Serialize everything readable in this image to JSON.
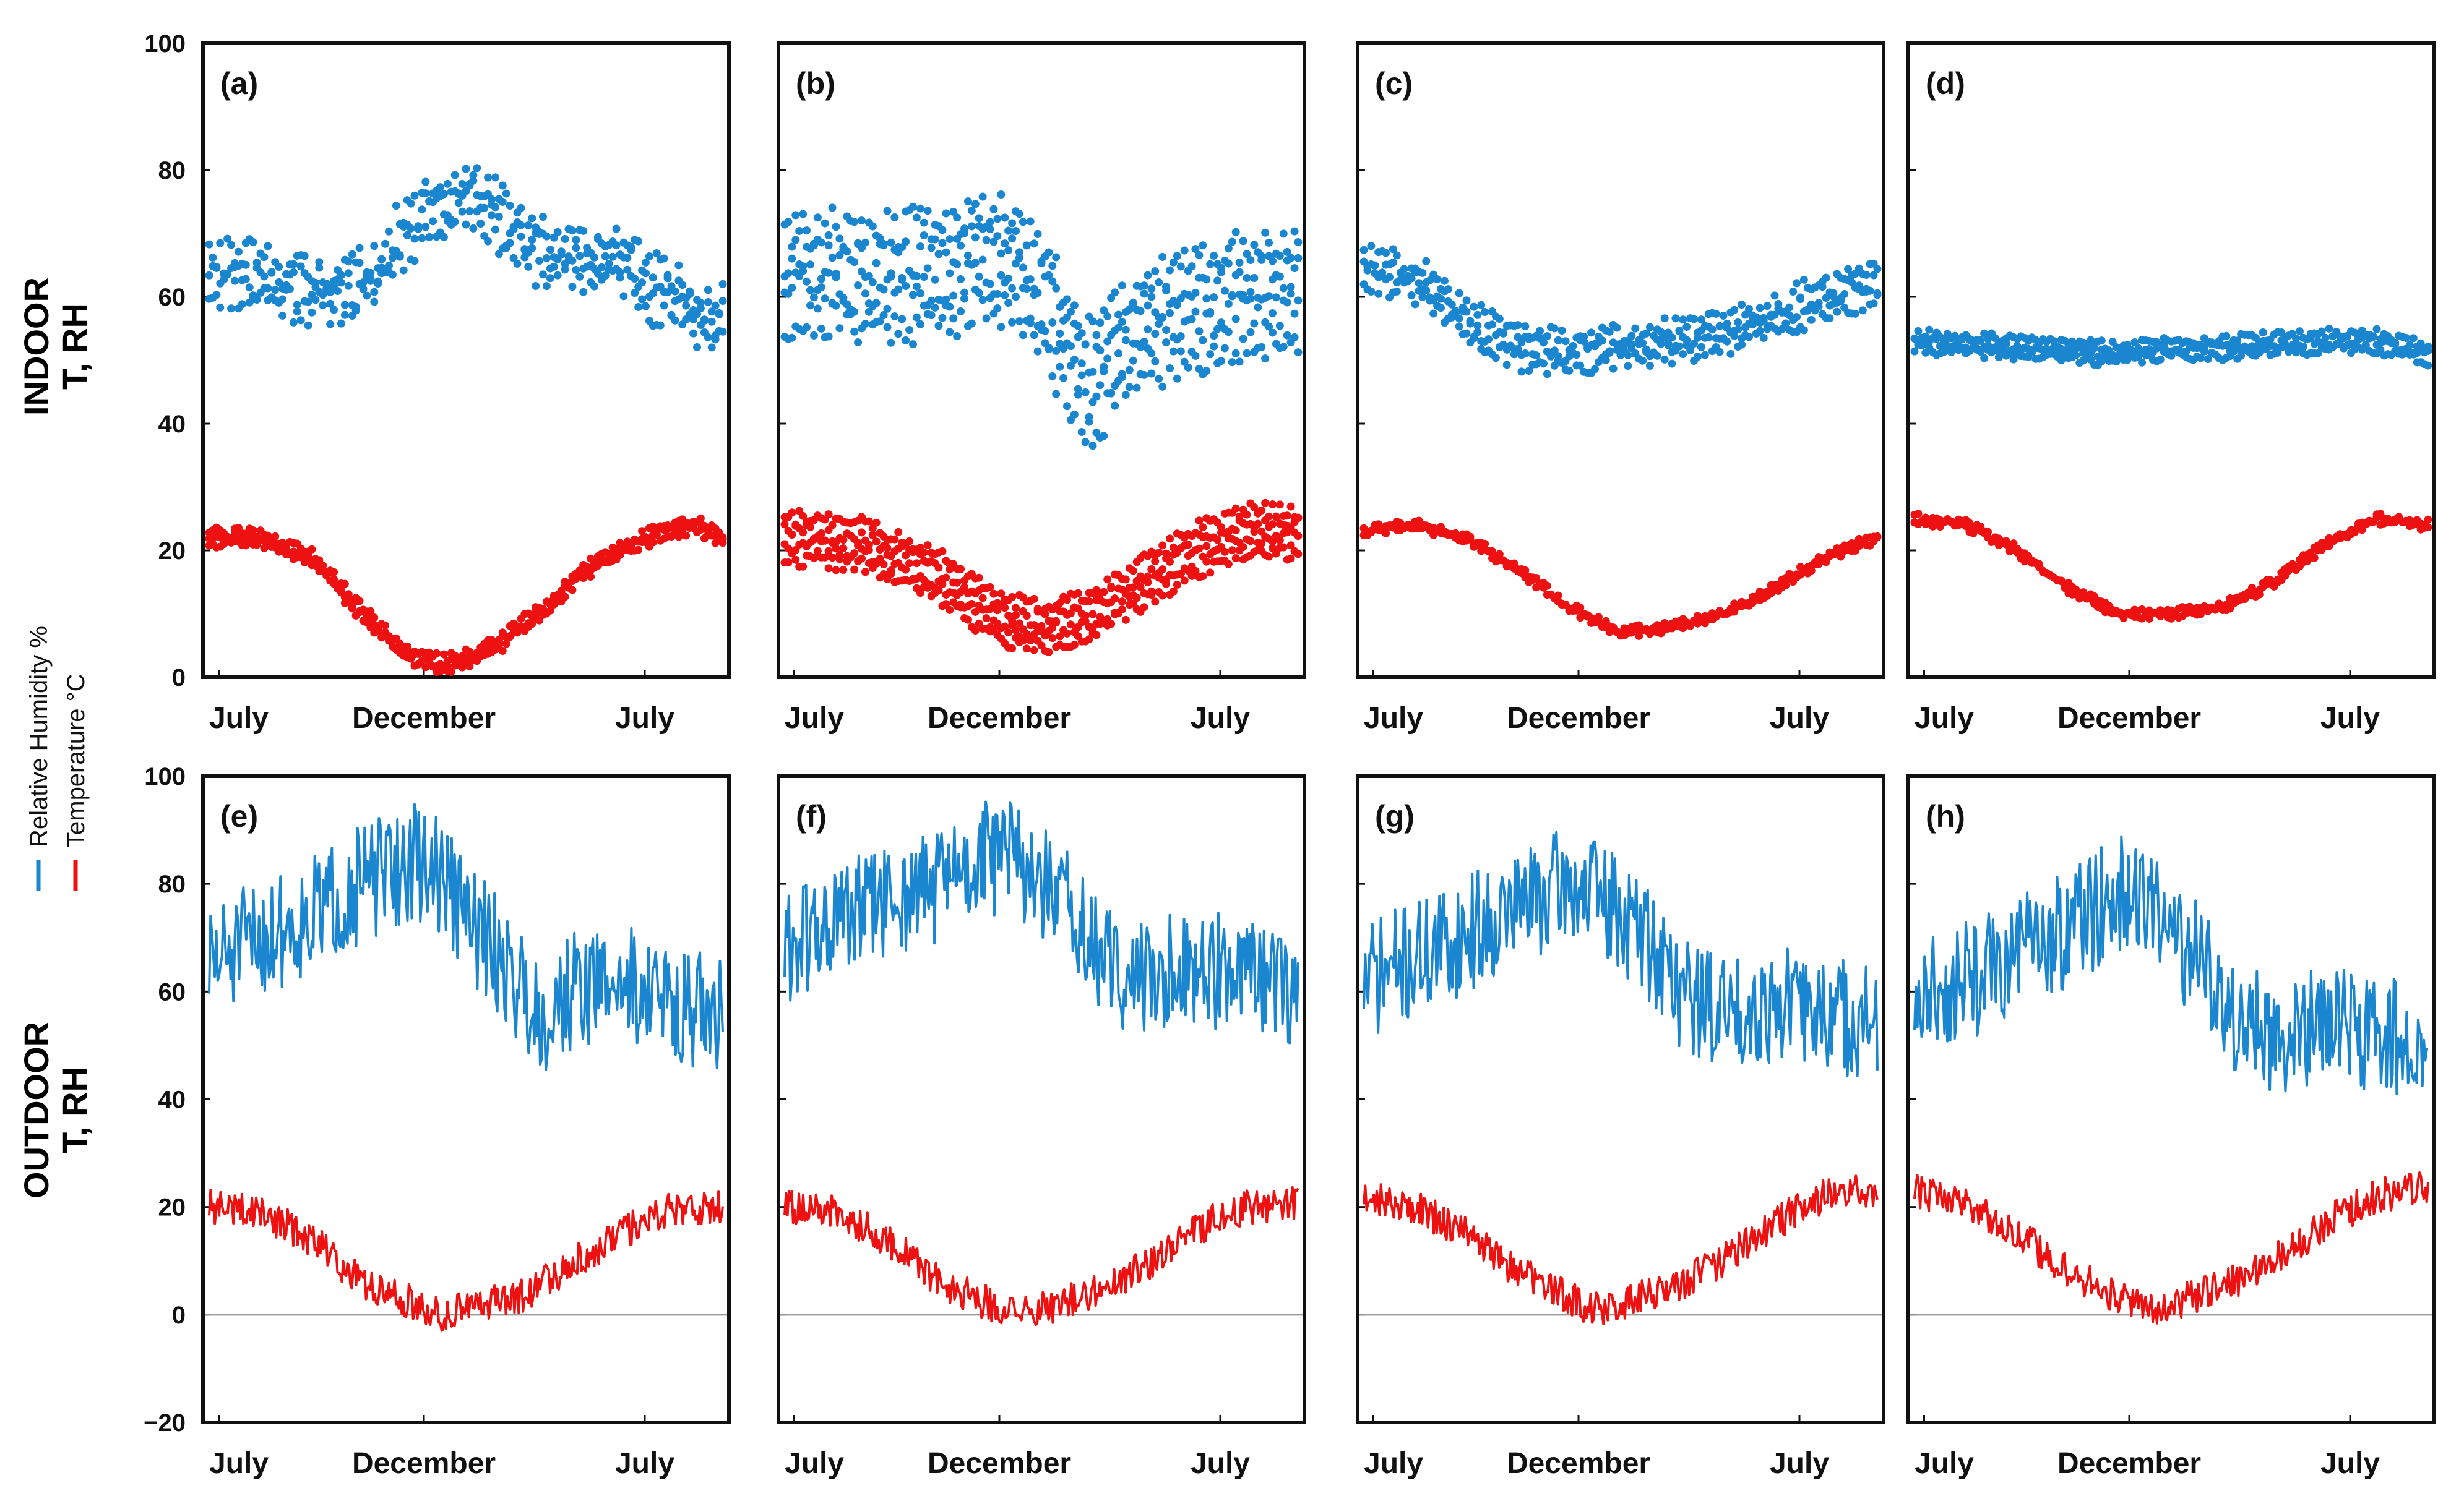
{
  "figure": {
    "row_labels": {
      "indoor": {
        "line1": "INDOOR",
        "line2": "T, RH"
      },
      "outdoor": {
        "line1": "OUTDOOR",
        "line2": "T, RH"
      }
    },
    "legend": {
      "items": [
        {
          "label": "Relative Humidity %",
          "color": "#1a86cf"
        },
        {
          "label": "Temperature °C",
          "color": "#ee1111"
        }
      ]
    },
    "colors": {
      "rh": "#1a86cf",
      "temp": "#ee1111",
      "zero_line": "#9a9a9a",
      "frame": "#111111"
    }
  },
  "chart_data": [
    {
      "id": "a",
      "panel_label": "(a)",
      "type": "scatter",
      "setting": "indoor",
      "ylim": [
        0,
        100
      ],
      "yticks": [
        "100",
        "80",
        "60",
        "40",
        "20",
        "0"
      ],
      "xticks": [
        "July",
        "December",
        "July"
      ],
      "series": [
        {
          "name": "Relative Humidity %",
          "knots": [
            [
              0,
              64
            ],
            [
              0.1,
              63
            ],
            [
              0.2,
              61
            ],
            [
              0.3,
              62
            ],
            [
              0.38,
              70
            ],
            [
              0.45,
              75
            ],
            [
              0.5,
              76
            ],
            [
              0.55,
              74
            ],
            [
              0.6,
              69
            ],
            [
              0.67,
              66
            ],
            [
              0.72,
              66
            ],
            [
              0.8,
              66
            ],
            [
              0.85,
              62
            ],
            [
              0.9,
              60
            ],
            [
              0.95,
              57
            ],
            [
              1,
              57
            ]
          ],
          "noise": 3.5,
          "strands": 3,
          "spread": 2.5,
          "seed": 11
        },
        {
          "name": "Temperature °C",
          "knots": [
            [
              0,
              22
            ],
            [
              0.1,
              22
            ],
            [
              0.2,
              19
            ],
            [
              0.3,
              10
            ],
            [
              0.38,
              4
            ],
            [
              0.45,
              2
            ],
            [
              0.5,
              3
            ],
            [
              0.56,
              5
            ],
            [
              0.64,
              10
            ],
            [
              0.72,
              16
            ],
            [
              0.8,
              20
            ],
            [
              0.88,
              23
            ],
            [
              0.95,
              24
            ],
            [
              1,
              22
            ]
          ],
          "noise": 0.8,
          "strands": 3,
          "spread": 0.8,
          "seed": 12
        }
      ]
    },
    {
      "id": "b",
      "panel_label": "(b)",
      "type": "scatter",
      "setting": "indoor",
      "ylim": [
        0,
        100
      ],
      "yticks": [],
      "xticks": [
        "July",
        "December",
        "July"
      ],
      "series": [
        {
          "name": "Relative Humidity %",
          "knots": [
            [
              0,
              63
            ],
            [
              0.1,
              64
            ],
            [
              0.2,
              63
            ],
            [
              0.3,
              64
            ],
            [
              0.4,
              66
            ],
            [
              0.45,
              66
            ],
            [
              0.5,
              60
            ],
            [
              0.55,
              52
            ],
            [
              0.6,
              46
            ],
            [
              0.65,
              52
            ],
            [
              0.7,
              56
            ],
            [
              0.8,
              58
            ],
            [
              0.9,
              60
            ],
            [
              1,
              62
            ]
          ],
          "noise": 3.5,
          "strands": 4,
          "spread": 5,
          "seed": 21
        },
        {
          "name": "Temperature °C",
          "knots": [
            [
              0,
              22
            ],
            [
              0.15,
              21
            ],
            [
              0.3,
              16
            ],
            [
              0.42,
              9
            ],
            [
              0.5,
              8
            ],
            [
              0.6,
              10
            ],
            [
              0.7,
              15
            ],
            [
              0.8,
              20
            ],
            [
              0.9,
              23
            ],
            [
              1,
              23
            ]
          ],
          "noise": 1.2,
          "strands": 4,
          "spread": 2.2,
          "seed": 22
        }
      ]
    },
    {
      "id": "c",
      "panel_label": "(c)",
      "type": "scatter",
      "setting": "indoor",
      "ylim": [
        0,
        100
      ],
      "yticks": [],
      "xticks": [
        "July",
        "December",
        "July"
      ],
      "series": [
        {
          "name": "Relative Humidity %",
          "knots": [
            [
              0,
              65
            ],
            [
              0.12,
              62
            ],
            [
              0.2,
              56
            ],
            [
              0.3,
              52
            ],
            [
              0.4,
              51
            ],
            [
              0.5,
              52
            ],
            [
              0.6,
              53
            ],
            [
              0.7,
              54
            ],
            [
              0.8,
              57
            ],
            [
              0.9,
              60
            ],
            [
              1,
              62
            ]
          ],
          "noise": 2,
          "strands": 3,
          "spread": 2,
          "seed": 31
        },
        {
          "name": "Temperature °C",
          "knots": [
            [
              0,
              23
            ],
            [
              0.1,
              24
            ],
            [
              0.2,
              22
            ],
            [
              0.3,
              17
            ],
            [
              0.4,
              11
            ],
            [
              0.5,
              7
            ],
            [
              0.6,
              8
            ],
            [
              0.7,
              10
            ],
            [
              0.8,
              14
            ],
            [
              0.9,
              19
            ],
            [
              1,
              22
            ]
          ],
          "noise": 0.6,
          "strands": 2,
          "spread": 0.6,
          "seed": 32
        }
      ]
    },
    {
      "id": "d",
      "panel_label": "(d)",
      "type": "scatter",
      "setting": "indoor",
      "ylim": [
        0,
        100
      ],
      "yticks": [],
      "xticks": [
        "July",
        "December",
        "July"
      ],
      "series": [
        {
          "name": "Relative Humidity %",
          "knots": [
            [
              0,
              53
            ],
            [
              0.2,
              52
            ],
            [
              0.4,
              51
            ],
            [
              0.5,
              52
            ],
            [
              0.6,
              52
            ],
            [
              0.8,
              53
            ],
            [
              0.9,
              53
            ],
            [
              1,
              51
            ]
          ],
          "noise": 0.8,
          "strands": 3,
          "spread": 1.2,
          "seed": 41
        },
        {
          "name": "Temperature °C",
          "knots": [
            [
              0,
              25
            ],
            [
              0.1,
              24
            ],
            [
              0.2,
              20
            ],
            [
              0.3,
              14
            ],
            [
              0.4,
              10
            ],
            [
              0.5,
              10
            ],
            [
              0.6,
              11
            ],
            [
              0.7,
              15
            ],
            [
              0.8,
              21
            ],
            [
              0.9,
              25
            ],
            [
              1,
              24
            ]
          ],
          "noise": 0.6,
          "strands": 2,
          "spread": 0.6,
          "seed": 42
        }
      ]
    },
    {
      "id": "e",
      "panel_label": "(e)",
      "type": "line",
      "setting": "outdoor",
      "ylim": [
        -20,
        100
      ],
      "yticks": [
        "100",
        "80",
        "60",
        "40",
        "20",
        "0",
        "−20"
      ],
      "xticks": [
        "July",
        "December",
        "July"
      ],
      "zero_line": true,
      "series": [
        {
          "name": "Relative Humidity %",
          "knots": [
            [
              0,
              65
            ],
            [
              0.1,
              70
            ],
            [
              0.2,
              74
            ],
            [
              0.3,
              80
            ],
            [
              0.4,
              84
            ],
            [
              0.45,
              82
            ],
            [
              0.5,
              74
            ],
            [
              0.6,
              62
            ],
            [
              0.65,
              55
            ],
            [
              0.7,
              60
            ],
            [
              0.8,
              62
            ],
            [
              0.9,
              58
            ],
            [
              1,
              55
            ]
          ],
          "noise": 11,
          "points": 360,
          "seed": 51
        },
        {
          "name": "Temperature °C",
          "knots": [
            [
              0,
              20
            ],
            [
              0.1,
              19
            ],
            [
              0.2,
              14
            ],
            [
              0.3,
              6
            ],
            [
              0.4,
              2
            ],
            [
              0.45,
              0
            ],
            [
              0.5,
              2
            ],
            [
              0.6,
              3
            ],
            [
              0.7,
              9
            ],
            [
              0.8,
              15
            ],
            [
              0.9,
              20
            ],
            [
              1,
              20
            ]
          ],
          "noise": 3.2,
          "points": 360,
          "seed": 52
        }
      ]
    },
    {
      "id": "f",
      "panel_label": "(f)",
      "type": "line",
      "setting": "outdoor",
      "ylim": [
        -20,
        100
      ],
      "yticks": [],
      "xticks": [
        "July",
        "December",
        "July"
      ],
      "zero_line": true,
      "series": [
        {
          "name": "Relative Humidity %",
          "knots": [
            [
              0,
              68
            ],
            [
              0.15,
              75
            ],
            [
              0.3,
              80
            ],
            [
              0.4,
              85
            ],
            [
              0.45,
              85
            ],
            [
              0.55,
              75
            ],
            [
              0.62,
              65
            ],
            [
              0.7,
              62
            ],
            [
              0.8,
              65
            ],
            [
              0.9,
              62
            ],
            [
              1,
              60
            ]
          ],
          "noise": 11,
          "points": 360,
          "seed": 61
        },
        {
          "name": "Temperature °C",
          "knots": [
            [
              0,
              20
            ],
            [
              0.1,
              19
            ],
            [
              0.2,
              14
            ],
            [
              0.3,
              6
            ],
            [
              0.4,
              2
            ],
            [
              0.45,
              0
            ],
            [
              0.5,
              1
            ],
            [
              0.6,
              4
            ],
            [
              0.7,
              9
            ],
            [
              0.8,
              16
            ],
            [
              0.9,
              20
            ],
            [
              1,
              21
            ]
          ],
          "noise": 3.2,
          "points": 360,
          "seed": 62
        }
      ]
    },
    {
      "id": "g",
      "panel_label": "(g)",
      "type": "line",
      "setting": "outdoor",
      "ylim": [
        -20,
        100
      ],
      "yticks": [],
      "xticks": [
        "July",
        "December",
        "July"
      ],
      "zero_line": true,
      "series": [
        {
          "name": "Relative Humidity %",
          "knots": [
            [
              0,
              62
            ],
            [
              0.15,
              68
            ],
            [
              0.3,
              76
            ],
            [
              0.4,
              80
            ],
            [
              0.45,
              78
            ],
            [
              0.55,
              70
            ],
            [
              0.62,
              60
            ],
            [
              0.7,
              56
            ],
            [
              0.8,
              58
            ],
            [
              0.9,
              56
            ],
            [
              1,
              54
            ]
          ],
          "noise": 11,
          "points": 360,
          "seed": 71
        },
        {
          "name": "Temperature °C",
          "knots": [
            [
              0,
              22
            ],
            [
              0.1,
              20
            ],
            [
              0.2,
              15
            ],
            [
              0.3,
              8
            ],
            [
              0.4,
              3
            ],
            [
              0.45,
              1
            ],
            [
              0.5,
              2
            ],
            [
              0.6,
              5
            ],
            [
              0.7,
              10
            ],
            [
              0.8,
              17
            ],
            [
              0.9,
              22
            ],
            [
              1,
              23
            ]
          ],
          "noise": 3.2,
          "points": 360,
          "seed": 72
        }
      ]
    },
    {
      "id": "h",
      "panel_label": "(h)",
      "type": "line",
      "setting": "outdoor",
      "ylim": [
        -20,
        100
      ],
      "yticks": [],
      "xticks": [
        "July",
        "December",
        "July"
      ],
      "zero_line": true,
      "series": [
        {
          "name": "Relative Humidity %",
          "knots": [
            [
              0,
              58
            ],
            [
              0.15,
              64
            ],
            [
              0.3,
              72
            ],
            [
              0.4,
              78
            ],
            [
              0.45,
              76
            ],
            [
              0.55,
              66
            ],
            [
              0.62,
              56
            ],
            [
              0.7,
              52
            ],
            [
              0.8,
              54
            ],
            [
              0.9,
              52
            ],
            [
              1,
              50
            ]
          ],
          "noise": 11,
          "points": 360,
          "seed": 81
        },
        {
          "name": "Temperature °C",
          "knots": [
            [
              0,
              23
            ],
            [
              0.1,
              21
            ],
            [
              0.2,
              15
            ],
            [
              0.3,
              8
            ],
            [
              0.4,
              3
            ],
            [
              0.45,
              1
            ],
            [
              0.5,
              2
            ],
            [
              0.6,
              5
            ],
            [
              0.7,
              10
            ],
            [
              0.8,
              17
            ],
            [
              0.9,
              22
            ],
            [
              1,
              24
            ]
          ],
          "noise": 3.2,
          "points": 360,
          "seed": 82
        }
      ]
    }
  ]
}
